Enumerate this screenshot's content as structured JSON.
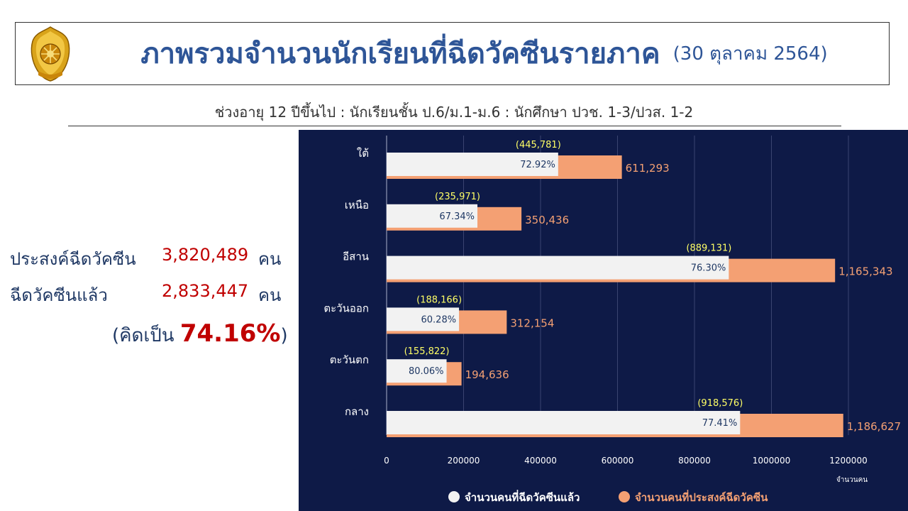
{
  "header": {
    "title": "ภาพรวมจำนวนนักเรียนที่ฉีดวัคซีนรายภาค",
    "date": "(30 ตุลาคม 2564)",
    "subtitle": "ช่วงอายุ 12 ปีขึ้นไป : นักเรียนชั้น ป.6/ม.1-ม.6 : นักศึกษา ปวช. 1-3/ปวส. 1-2"
  },
  "summary": {
    "target_label": "ประสงค์ฉีดวัคซีน",
    "target_value": "3,820,489",
    "done_label": "ฉีดวัคซีนแล้ว",
    "done_value": "2,833,447",
    "unit": "คน",
    "percent_prefix": "(คิดเป็น ",
    "percent_value": "74.16%",
    "percent_suffix": ")"
  },
  "chart_data": {
    "type": "bar",
    "orientation": "horizontal",
    "categories": [
      "ใต้",
      "เหนือ",
      "อีสาน",
      "ตะวันออก",
      "ตะวันตก",
      "กลาง"
    ],
    "series": [
      {
        "name": "จำนวนคนที่ฉีดวัคซีนแล้ว",
        "color": "#f2f2f2",
        "values": [
          445781,
          235971,
          889131,
          188166,
          155822,
          918576
        ],
        "value_labels": [
          "(445,781)",
          "(235,971)",
          "(889,131)",
          "(188,166)",
          "(155,822)",
          "(918,576)"
        ],
        "percent_labels": [
          "72.92%",
          "67.34%",
          "76.30%",
          "60.28%",
          "80.06%",
          "77.41%"
        ]
      },
      {
        "name": "จำนวนคนที่ประสงค์ฉีดวัคซีน",
        "color": "#f4a073",
        "values": [
          611293,
          350436,
          1165343,
          312154,
          194636,
          1186627
        ],
        "value_labels": [
          "611,293",
          "350,436",
          "1,165,343",
          "312,154",
          "194,636",
          "1,186,627"
        ]
      }
    ],
    "x_ticks": [
      "0",
      "200000",
      "400000",
      "600000",
      "800000",
      "1000000",
      "1200000"
    ],
    "xlim": [
      0,
      1200000
    ],
    "xlabel": "จำนวนคน",
    "grid": true,
    "legend_position": "bottom",
    "colors": {
      "background": "#0e1a47",
      "grid": "#3a4470",
      "value_label": "#ffff66",
      "percent_label": "#1f3864",
      "target_label": "#f4a073",
      "axis_text": "#ffffff"
    }
  }
}
